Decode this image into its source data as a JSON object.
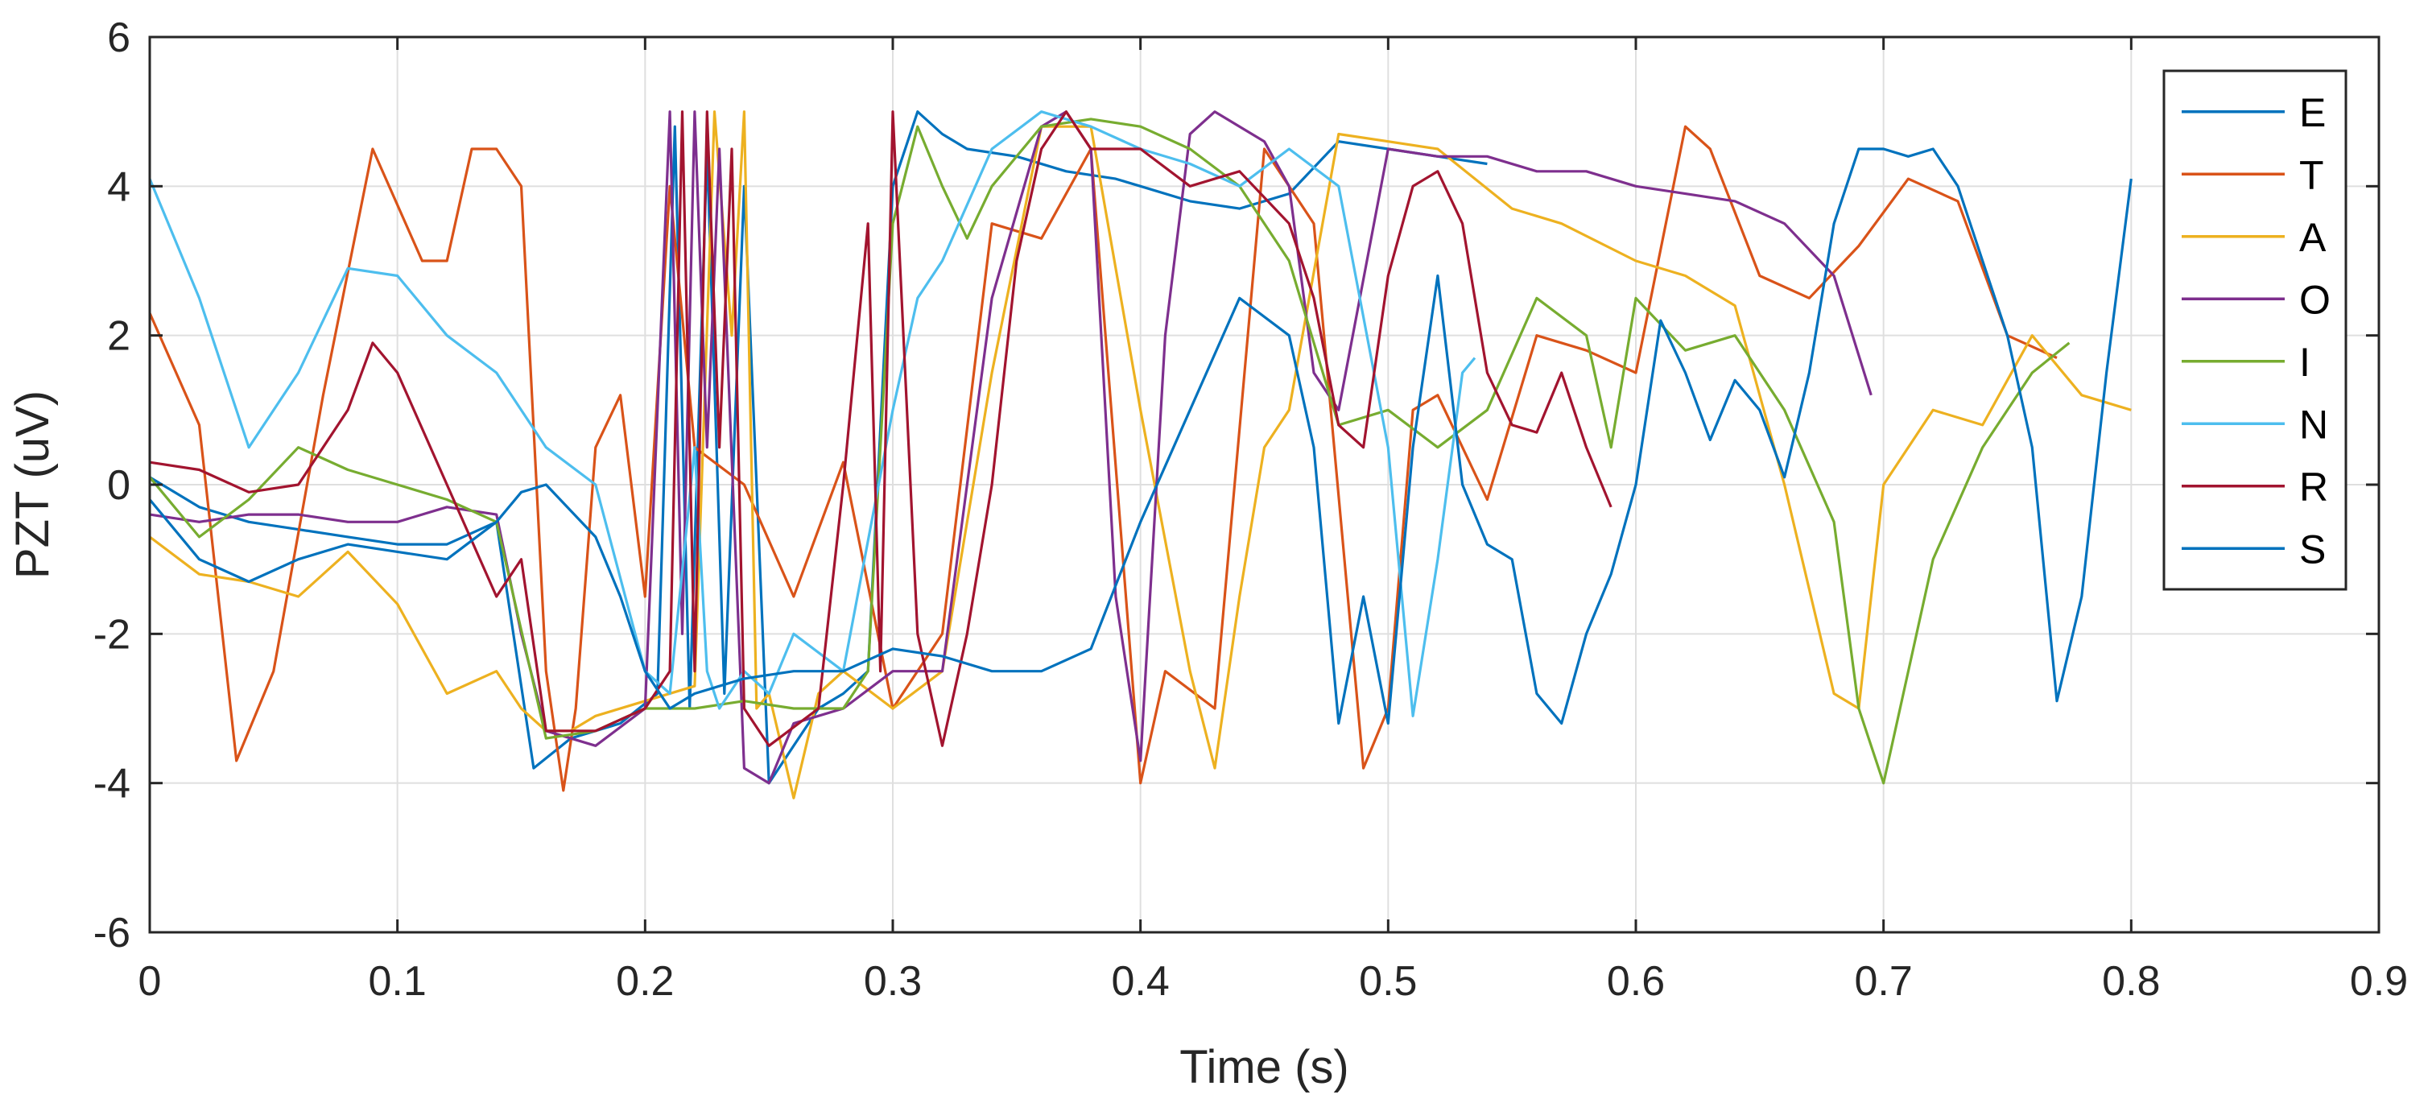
{
  "chart_data": {
    "type": "line",
    "title": "",
    "xlabel": "Time (s)",
    "ylabel": "PZT (uV)",
    "xlim": [
      0,
      0.9
    ],
    "ylim": [
      -6,
      6
    ],
    "xticks": [
      0,
      0.1,
      0.2,
      0.3,
      0.4,
      0.5,
      0.6,
      0.7,
      0.8,
      0.9
    ],
    "xtick_labels": [
      "0",
      "0.1",
      "0.2",
      "0.3",
      "0.4",
      "0.5",
      "0.6",
      "0.7",
      "0.8",
      "0.9"
    ],
    "yticks": [
      -6,
      -4,
      -2,
      0,
      2,
      4,
      6
    ],
    "ytick_labels": [
      "-6",
      "-4",
      "-2",
      "0",
      "2",
      "4",
      "6"
    ],
    "grid": true,
    "legend_position": "top-right",
    "series": [
      {
        "name": "E",
        "color": "#0072BD",
        "x": [
          0,
          0.02,
          0.04,
          0.06,
          0.08,
          0.1,
          0.12,
          0.14,
          0.155,
          0.17,
          0.19,
          0.205,
          0.212,
          0.218,
          0.225,
          0.232,
          0.24,
          0.25,
          0.26,
          0.27,
          0.28,
          0.29,
          0.3,
          0.31,
          0.32,
          0.33,
          0.35,
          0.37,
          0.39,
          0.4,
          0.42,
          0.44,
          0.46,
          0.48,
          0.5,
          0.52,
          0.54
        ],
        "y": [
          0.1,
          -0.3,
          -0.5,
          -0.6,
          -0.7,
          -0.8,
          -0.8,
          -0.5,
          -3.8,
          -3.4,
          -3.2,
          -2.8,
          4.8,
          -3.0,
          4.5,
          -2.8,
          4.0,
          -4.0,
          -3.5,
          -3.0,
          -2.8,
          -2.5,
          4.0,
          5.0,
          4.7,
          4.5,
          4.4,
          4.2,
          4.1,
          4.0,
          3.8,
          3.7,
          3.9,
          4.6,
          4.5,
          4.4,
          4.3
        ]
      },
      {
        "name": "T",
        "color": "#D95319",
        "x": [
          0,
          0.02,
          0.035,
          0.05,
          0.07,
          0.09,
          0.11,
          0.12,
          0.13,
          0.14,
          0.15,
          0.16,
          0.167,
          0.172,
          0.18,
          0.19,
          0.2,
          0.21,
          0.22,
          0.24,
          0.26,
          0.28,
          0.3,
          0.32,
          0.34,
          0.36,
          0.38,
          0.4,
          0.41,
          0.43,
          0.45,
          0.47,
          0.49,
          0.5,
          0.51,
          0.52,
          0.54,
          0.56,
          0.58,
          0.6,
          0.62,
          0.63,
          0.65,
          0.67,
          0.69,
          0.71,
          0.73,
          0.75,
          0.77
        ],
        "y": [
          2.3,
          0.8,
          -3.7,
          -2.5,
          1.2,
          4.5,
          3.0,
          3.0,
          4.5,
          4.5,
          4.0,
          -2.5,
          -4.1,
          -3.0,
          0.5,
          1.2,
          -1.5,
          4.0,
          0.5,
          0.0,
          -1.5,
          0.3,
          -3.0,
          -2.0,
          3.5,
          3.3,
          4.5,
          -4.0,
          -2.5,
          -3.0,
          4.5,
          3.5,
          -3.8,
          -3.0,
          1.0,
          1.2,
          -0.2,
          2.0,
          1.8,
          1.5,
          4.8,
          4.5,
          2.8,
          2.5,
          3.2,
          4.1,
          3.8,
          2.0,
          1.7
        ]
      },
      {
        "name": "A",
        "color": "#EDB120",
        "x": [
          0,
          0.02,
          0.04,
          0.06,
          0.08,
          0.1,
          0.12,
          0.14,
          0.15,
          0.16,
          0.17,
          0.18,
          0.2,
          0.22,
          0.228,
          0.235,
          0.24,
          0.245,
          0.25,
          0.26,
          0.27,
          0.28,
          0.3,
          0.32,
          0.34,
          0.36,
          0.38,
          0.4,
          0.42,
          0.43,
          0.44,
          0.45,
          0.46,
          0.48,
          0.5,
          0.52,
          0.55,
          0.57,
          0.6,
          0.62,
          0.64,
          0.66,
          0.68,
          0.69,
          0.7,
          0.72,
          0.74,
          0.76,
          0.78,
          0.8
        ],
        "y": [
          -0.7,
          -1.2,
          -1.3,
          -1.5,
          -0.9,
          -1.6,
          -2.8,
          -2.5,
          -3.0,
          -3.3,
          -3.3,
          -3.1,
          -2.9,
          -2.7,
          5.0,
          2.0,
          5.0,
          -3.0,
          -2.8,
          -4.2,
          -2.8,
          -2.5,
          -3.0,
          -2.5,
          1.5,
          4.8,
          4.8,
          1.0,
          -2.5,
          -3.8,
          -1.5,
          0.5,
          1.0,
          4.7,
          4.6,
          4.5,
          3.7,
          3.5,
          3.0,
          2.8,
          2.4,
          0.0,
          -2.8,
          -3.0,
          0.0,
          1.0,
          0.8,
          2.0,
          1.2,
          1.0
        ]
      },
      {
        "name": "O",
        "color": "#7E2F8E",
        "x": [
          0,
          0.02,
          0.04,
          0.06,
          0.08,
          0.1,
          0.12,
          0.14,
          0.15,
          0.16,
          0.18,
          0.2,
          0.21,
          0.215,
          0.22,
          0.225,
          0.23,
          0.24,
          0.25,
          0.26,
          0.28,
          0.3,
          0.32,
          0.34,
          0.36,
          0.37,
          0.38,
          0.39,
          0.4,
          0.41,
          0.42,
          0.43,
          0.44,
          0.45,
          0.46,
          0.47,
          0.48,
          0.5,
          0.52,
          0.54,
          0.56,
          0.58,
          0.6,
          0.62,
          0.64,
          0.66,
          0.68,
          0.695
        ],
        "y": [
          -0.4,
          -0.5,
          -0.4,
          -0.4,
          -0.5,
          -0.5,
          -0.3,
          -0.4,
          -2.0,
          -3.3,
          -3.5,
          -3.0,
          5.0,
          -2.0,
          5.0,
          0.5,
          4.5,
          -3.8,
          -4.0,
          -3.2,
          -3.0,
          -2.5,
          -2.5,
          2.5,
          4.8,
          5.0,
          4.5,
          -1.5,
          -3.7,
          2.0,
          4.7,
          5.0,
          4.8,
          4.6,
          4.0,
          1.5,
          1.0,
          4.5,
          4.4,
          4.4,
          4.2,
          4.2,
          4.0,
          3.9,
          3.8,
          3.5,
          2.8,
          1.2
        ]
      },
      {
        "name": "I",
        "color": "#77AC30",
        "x": [
          0,
          0.02,
          0.04,
          0.06,
          0.08,
          0.1,
          0.12,
          0.14,
          0.16,
          0.18,
          0.2,
          0.22,
          0.24,
          0.26,
          0.28,
          0.29,
          0.3,
          0.31,
          0.32,
          0.33,
          0.34,
          0.36,
          0.38,
          0.4,
          0.42,
          0.44,
          0.46,
          0.48,
          0.5,
          0.52,
          0.54,
          0.56,
          0.58,
          0.59,
          0.6,
          0.62,
          0.64,
          0.66,
          0.68,
          0.69,
          0.7,
          0.72,
          0.74,
          0.76,
          0.775
        ],
        "y": [
          0.1,
          -0.7,
          -0.2,
          0.5,
          0.2,
          0.0,
          -0.2,
          -0.5,
          -3.4,
          -3.3,
          -3.0,
          -3.0,
          -2.9,
          -3.0,
          -3.0,
          -2.5,
          3.5,
          4.8,
          4.0,
          3.3,
          4.0,
          4.8,
          4.9,
          4.8,
          4.5,
          4.0,
          3.0,
          0.8,
          1.0,
          0.5,
          1.0,
          2.5,
          2.0,
          0.5,
          2.5,
          1.8,
          2.0,
          1.0,
          -0.5,
          -3.0,
          -4.0,
          -1.0,
          0.5,
          1.5,
          1.9
        ]
      },
      {
        "name": "N",
        "color": "#4DBEEE",
        "x": [
          0,
          0.02,
          0.04,
          0.06,
          0.08,
          0.1,
          0.12,
          0.14,
          0.16,
          0.18,
          0.2,
          0.21,
          0.22,
          0.225,
          0.23,
          0.24,
          0.25,
          0.26,
          0.28,
          0.3,
          0.31,
          0.32,
          0.34,
          0.36,
          0.38,
          0.4,
          0.42,
          0.44,
          0.46,
          0.48,
          0.5,
          0.51,
          0.52,
          0.53,
          0.535
        ],
        "y": [
          4.1,
          2.5,
          0.5,
          1.5,
          2.9,
          2.8,
          2.0,
          1.5,
          0.5,
          0.0,
          -2.5,
          -2.8,
          0.5,
          -2.5,
          -3.0,
          -2.5,
          -2.8,
          -2.0,
          -2.5,
          1.0,
          2.5,
          3.0,
          4.5,
          5.0,
          4.8,
          4.5,
          4.3,
          4.0,
          4.5,
          4.0,
          0.5,
          -3.1,
          -1.0,
          1.5,
          1.7
        ]
      },
      {
        "name": "R",
        "color": "#A2142F",
        "x": [
          0,
          0.02,
          0.04,
          0.06,
          0.08,
          0.09,
          0.1,
          0.12,
          0.14,
          0.15,
          0.16,
          0.18,
          0.2,
          0.21,
          0.215,
          0.22,
          0.225,
          0.23,
          0.235,
          0.24,
          0.25,
          0.27,
          0.28,
          0.29,
          0.295,
          0.3,
          0.31,
          0.32,
          0.33,
          0.34,
          0.35,
          0.36,
          0.37,
          0.38,
          0.4,
          0.42,
          0.44,
          0.46,
          0.47,
          0.48,
          0.49,
          0.5,
          0.51,
          0.52,
          0.53,
          0.54,
          0.55,
          0.56,
          0.57,
          0.58,
          0.59
        ],
        "y": [
          0.3,
          0.2,
          -0.1,
          0.0,
          1.0,
          1.9,
          1.5,
          0.0,
          -1.5,
          -1.0,
          -3.3,
          -3.3,
          -3.0,
          -2.5,
          5.0,
          -2.5,
          5.0,
          0.5,
          4.5,
          -3.0,
          -3.5,
          -3.0,
          0.0,
          3.5,
          -2.5,
          5.0,
          -2.0,
          -3.5,
          -2.0,
          0.0,
          3.0,
          4.5,
          5.0,
          4.5,
          4.5,
          4.0,
          4.2,
          3.5,
          2.5,
          0.8,
          0.5,
          2.8,
          4.0,
          4.2,
          3.5,
          1.5,
          0.8,
          0.7,
          1.5,
          0.5,
          -0.3
        ]
      },
      {
        "name": "S",
        "color": "#0072BD",
        "x": [
          0,
          0.02,
          0.04,
          0.06,
          0.08,
          0.1,
          0.12,
          0.14,
          0.15,
          0.16,
          0.18,
          0.19,
          0.2,
          0.21,
          0.22,
          0.24,
          0.26,
          0.28,
          0.3,
          0.32,
          0.34,
          0.36,
          0.38,
          0.4,
          0.42,
          0.44,
          0.46,
          0.47,
          0.48,
          0.49,
          0.5,
          0.51,
          0.52,
          0.53,
          0.54,
          0.55,
          0.56,
          0.57,
          0.58,
          0.59,
          0.6,
          0.61,
          0.62,
          0.63,
          0.64,
          0.65,
          0.66,
          0.67,
          0.68,
          0.69,
          0.7,
          0.71,
          0.72,
          0.73,
          0.74,
          0.75,
          0.76,
          0.77,
          0.78,
          0.79,
          0.8
        ],
        "y": [
          -0.2,
          -1.0,
          -1.3,
          -1.0,
          -0.8,
          -0.9,
          -1.0,
          -0.5,
          -0.1,
          0.0,
          -0.7,
          -1.5,
          -2.5,
          -3.0,
          -2.8,
          -2.6,
          -2.5,
          -2.5,
          -2.2,
          -2.3,
          -2.5,
          -2.5,
          -2.2,
          -0.5,
          1.0,
          2.5,
          2.0,
          0.5,
          -3.2,
          -1.5,
          -3.2,
          0.5,
          2.8,
          0.0,
          -0.8,
          -1.0,
          -2.8,
          -3.2,
          -2.0,
          -1.2,
          0.0,
          2.2,
          1.5,
          0.6,
          1.4,
          1.0,
          0.1,
          1.5,
          3.5,
          4.5,
          4.5,
          4.4,
          4.5,
          4.0,
          3.0,
          2.0,
          0.5,
          -2.9,
          -1.5,
          1.5,
          4.1
        ]
      }
    ]
  }
}
